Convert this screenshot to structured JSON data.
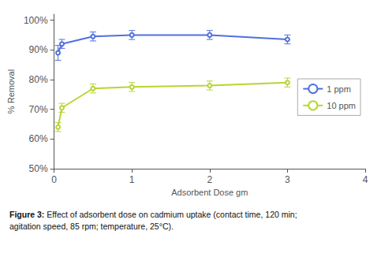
{
  "chart_data": {
    "type": "line",
    "x": [
      0.05,
      0.1,
      0.5,
      1,
      2,
      3
    ],
    "series": [
      {
        "name": "1 ppm",
        "values": [
          89.0,
          92.0,
          94.5,
          95.0,
          95.0,
          93.5
        ],
        "yerr": [
          2.5,
          1.5,
          1.5,
          1.5,
          1.5,
          1.5
        ]
      },
      {
        "name": "10 ppm",
        "values": [
          64.0,
          70.5,
          77.0,
          77.5,
          78.0,
          79.0
        ],
        "yerr": [
          1.5,
          1.5,
          1.5,
          1.5,
          1.5,
          1.5
        ]
      }
    ],
    "xlabel": "Adsorbent Dose gm",
    "ylabel": "% Removal",
    "xlim": [
      0,
      4
    ],
    "xticks": [
      0,
      1,
      2,
      3,
      4
    ],
    "ylim": [
      50,
      102
    ],
    "yticks": [
      {
        "value": 50,
        "label": "50%"
      },
      {
        "value": 60,
        "label": "60%"
      },
      {
        "value": 70,
        "label": "70%"
      },
      {
        "value": 80,
        "label": "80%"
      },
      {
        "value": 90,
        "label": "90%"
      },
      {
        "value": 100,
        "label": "100%"
      }
    ],
    "grid": false,
    "legend": "right",
    "caption": {
      "label": "Figure 3:",
      "text": "Effect of adsorbent dose on cadmium uptake (contact time, 120 min;\nagitation speed, 85 rpm; temperature, 25°C)."
    }
  }
}
